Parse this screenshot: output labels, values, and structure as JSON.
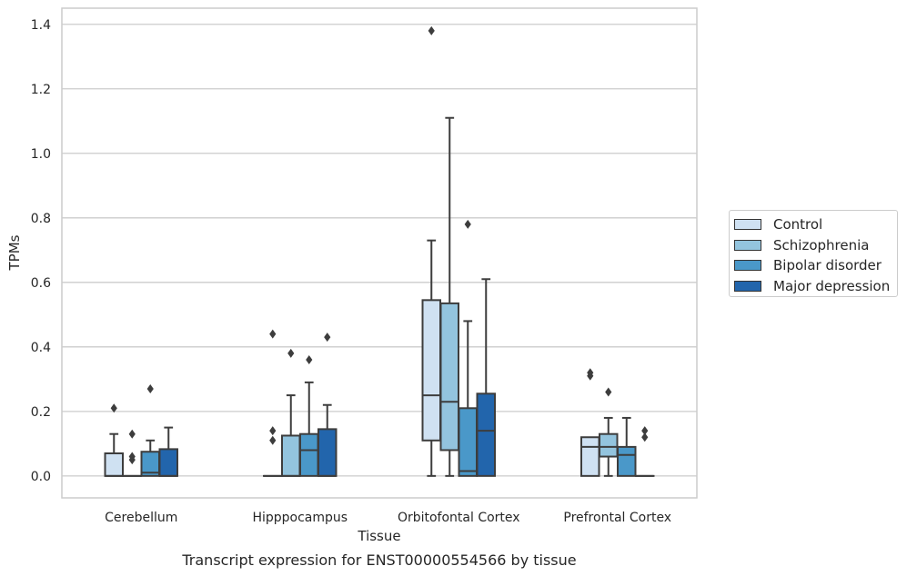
{
  "chart_data": {
    "type": "box",
    "caption": "Transcript expression for ENST00000554566 by tissue",
    "xlabel": "Tissue",
    "ylabel": "TPMs",
    "ylim": [
      -0.068,
      1.45
    ],
    "yticks": [
      0.0,
      0.2,
      0.4,
      0.6,
      0.8,
      1.0,
      1.2,
      1.4
    ],
    "ytick_labels": [
      "0.0",
      "0.2",
      "0.4",
      "0.6",
      "0.8",
      "1.0",
      "1.2",
      "1.4"
    ],
    "grid": "horizontal",
    "legend_position": "right",
    "categories": [
      "Cerebellum",
      "Hipppocampus",
      "Orbitofontal Cortex",
      "Prefrontal Cortex"
    ],
    "series": [
      {
        "name": "Control",
        "color": "#cfe1f2",
        "boxes": [
          {
            "min": 0,
            "q1": 0,
            "median": 0,
            "q3": 0.07,
            "max": 0.13,
            "outliers": [
              0.21
            ]
          },
          {
            "min": 0,
            "q1": 0,
            "median": 0,
            "q3": 0,
            "max": 0,
            "outliers": [
              0.11,
              0.14,
              0.44
            ]
          },
          {
            "min": 0,
            "q1": 0.11,
            "median": 0.25,
            "q3": 0.545,
            "max": 0.73,
            "outliers": [
              1.38
            ]
          },
          {
            "min": 0,
            "q1": 0,
            "median": 0.09,
            "q3": 0.12,
            "max": 0.12,
            "outliers": [
              0.31,
              0.32
            ]
          }
        ]
      },
      {
        "name": "Schizophrenia",
        "color": "#93c4de",
        "boxes": [
          {
            "min": 0,
            "q1": 0,
            "median": 0,
            "q3": 0,
            "max": 0,
            "outliers": [
              0.05,
              0.06,
              0.13
            ]
          },
          {
            "min": 0,
            "q1": 0,
            "median": 0,
            "q3": 0.125,
            "max": 0.25,
            "outliers": [
              0.38
            ]
          },
          {
            "min": 0,
            "q1": 0.08,
            "median": 0.23,
            "q3": 0.535,
            "max": 1.11,
            "outliers": []
          },
          {
            "min": 0,
            "q1": 0.06,
            "median": 0.09,
            "q3": 0.13,
            "max": 0.18,
            "outliers": [
              0.26
            ]
          }
        ]
      },
      {
        "name": "Bipolar disorder",
        "color": "#4a98c9",
        "boxes": [
          {
            "min": 0,
            "q1": 0,
            "median": 0.01,
            "q3": 0.075,
            "max": 0.11,
            "outliers": [
              0.27
            ]
          },
          {
            "min": 0,
            "q1": 0,
            "median": 0.08,
            "q3": 0.13,
            "max": 0.29,
            "outliers": [
              0.36
            ]
          },
          {
            "min": 0,
            "q1": 0,
            "median": 0.015,
            "q3": 0.21,
            "max": 0.48,
            "outliers": [
              0.78
            ]
          },
          {
            "min": 0,
            "q1": 0,
            "median": 0.065,
            "q3": 0.09,
            "max": 0.18,
            "outliers": []
          }
        ]
      },
      {
        "name": "Major depression",
        "color": "#2265ac",
        "boxes": [
          {
            "min": 0,
            "q1": 0,
            "median": 0,
            "q3": 0.083,
            "max": 0.15,
            "outliers": []
          },
          {
            "min": 0,
            "q1": 0,
            "median": 0,
            "q3": 0.145,
            "max": 0.22,
            "outliers": [
              0.43
            ]
          },
          {
            "min": 0,
            "q1": 0,
            "median": 0.14,
            "q3": 0.255,
            "max": 0.61,
            "outliers": []
          },
          {
            "min": 0,
            "q1": 0,
            "median": 0,
            "q3": 0,
            "max": 0,
            "outliers": [
              0.12,
              0.14
            ]
          }
        ]
      }
    ]
  }
}
